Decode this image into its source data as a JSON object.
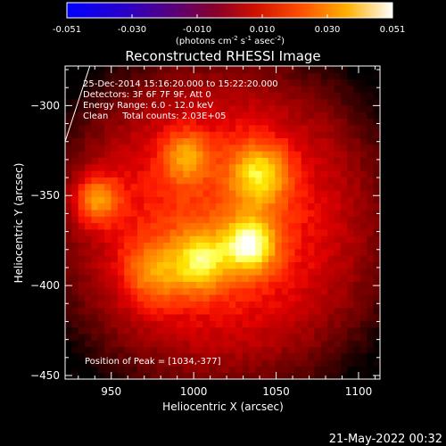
{
  "colorbar": {
    "ticks": [
      "-0.051",
      "-0.030",
      "-0.010",
      "0.010",
      "0.030",
      "0.051"
    ],
    "unit_parts": [
      "(photons cm",
      "-2",
      " s",
      "-1",
      " asec",
      "-2",
      ")"
    ]
  },
  "chart_data": {
    "type": "heatmap",
    "title": "Reconstructed RHESSI Image",
    "xlabel": "Heliocentric X (arcsec)",
    "ylabel": "Heliocentric Y (arcsec)",
    "xlim": [
      922,
      1113
    ],
    "ylim": [
      -452,
      -278
    ],
    "x_ticks": [
      950,
      1000,
      1050,
      1100
    ],
    "y_ticks": [
      -300,
      -350,
      -400,
      -450
    ],
    "colorbar_range": [
      -0.051,
      0.051
    ],
    "colormap": "red-temperature",
    "sources": [
      {
        "x": 1034,
        "y": -377,
        "amp": 1.0,
        "r": 11
      },
      {
        "x": 1004,
        "y": -386,
        "amp": 0.78,
        "r": 12
      },
      {
        "x": 1040,
        "y": -338,
        "amp": 0.78,
        "r": 12
      },
      {
        "x": 941,
        "y": -352,
        "amp": 0.72,
        "r": 10
      },
      {
        "x": 995,
        "y": -328,
        "amp": 0.55,
        "r": 10
      },
      {
        "x": 975,
        "y": -393,
        "amp": 0.5,
        "r": 13
      }
    ],
    "limb_line": {
      "x": [
        922,
        937
      ],
      "y": [
        -320,
        -278
      ]
    },
    "annotations": [
      "25-Dec-2014 15:16:20.000 to 15:22:20.000",
      "Detectors: 3F 6F 7F 9F, Att 0",
      "Energy Range: 6.0 - 12.0 keV",
      "Clean     Total counts: 2.03E+05"
    ],
    "peak_label": "Position of Peak = [1034,-377]"
  },
  "footer": {
    "date": "21-May-2022 00:32"
  }
}
